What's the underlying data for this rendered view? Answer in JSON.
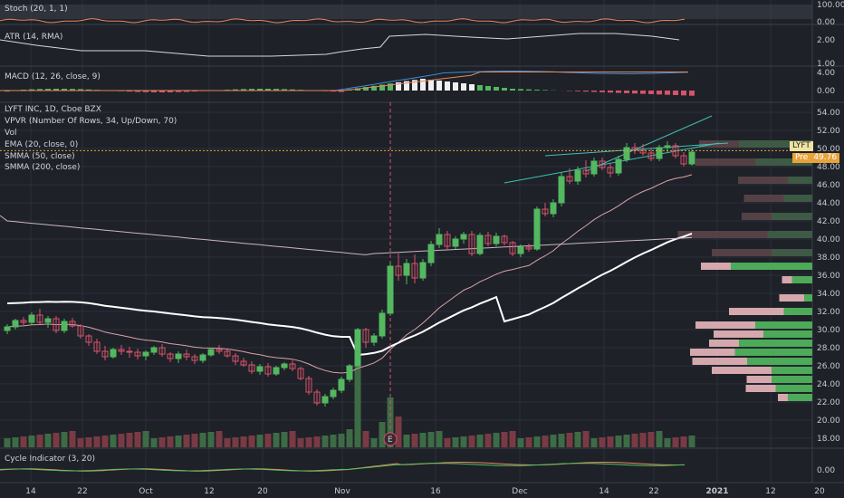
{
  "colors": {
    "background": "#1e2128",
    "grid": "#2c303a",
    "up": "#53b860",
    "down": "#d8536a",
    "ema": "#d9a2a8",
    "smma50": "#ffffff",
    "smma200": "#c9b6c6",
    "channel": "#3fc1b0",
    "stoch": "#e8875a",
    "atr": "#d8d8d8",
    "macd": "#3b8bd8",
    "macd_signal": "#e8875a",
    "price_line": "#e8a23a",
    "cycle_a": "#e8875a",
    "cycle_b": "#55c060",
    "vprofile_up": "#4caa58",
    "vprofile_down": "#d4a8ad",
    "vprofile_up_faded": "#3e5a44",
    "vprofile_down_faded": "#5a4548"
  },
  "panes": {
    "stoch": {
      "label": "Stoch (20, 1, 1)",
      "ticks": [
        "100.00",
        "0.00"
      ]
    },
    "atr": {
      "label": "ATR (14, RMA)",
      "ticks": [
        "2.00",
        "1.00"
      ]
    },
    "macd": {
      "label": "MACD (12, 26, close, 9)",
      "ticks": [
        "4.00",
        "0.00"
      ]
    },
    "main": {
      "labels": [
        "LYFT INC, 1D, Cboe BZX",
        "VPVR (Number Of Rows, 34, Up/Down, 70)",
        "Vol",
        "EMA (20, close, 0)",
        "SMMA (50, close)",
        "SMMA (200, close)"
      ],
      "ticker_tag": "LYFT",
      "price_tag_prefix": "Pre",
      "price_tag_value": "49.76",
      "event_marker": "E"
    },
    "cycle": {
      "label": "Cycle Indicator (3, 20)",
      "ticks": [
        "0.00"
      ]
    }
  },
  "chart_data": [
    {
      "type": "candlestick",
      "title": "LYFT INC, 1D, Cboe BZX",
      "y_ticks": [
        "54.00",
        "52.00",
        "50.00",
        "48.00",
        "46.00",
        "44.00",
        "42.00",
        "40.00",
        "38.00",
        "36.00",
        "34.00",
        "32.00",
        "30.00",
        "28.00",
        "26.00",
        "24.00",
        "22.00",
        "20.00",
        "18.00"
      ],
      "ylim": [
        17,
        55
      ],
      "x_ticks": [
        "14",
        "22",
        "Oct",
        "12",
        "20",
        "Nov",
        "16",
        "Dec",
        "14",
        "22",
        "2021",
        "12",
        "20"
      ],
      "current_price": 49.76,
      "candles": [
        [
          29.9,
          30.6,
          29.5,
          30.3
        ],
        [
          30.3,
          31.2,
          30.0,
          31.0
        ],
        [
          31.0,
          31.4,
          30.5,
          30.8
        ],
        [
          30.8,
          31.9,
          30.5,
          31.6
        ],
        [
          31.6,
          32.3,
          30.6,
          30.8
        ],
        [
          30.8,
          31.5,
          30.2,
          31.2
        ],
        [
          31.2,
          31.5,
          29.6,
          29.9
        ],
        [
          29.9,
          31.2,
          29.6,
          30.9
        ],
        [
          30.9,
          31.3,
          30.2,
          30.4
        ],
        [
          30.4,
          30.6,
          29.0,
          29.3
        ],
        [
          29.3,
          29.5,
          28.2,
          28.6
        ],
        [
          28.6,
          29.0,
          27.3,
          27.6
        ],
        [
          27.6,
          28.2,
          26.6,
          27.0
        ],
        [
          27.0,
          28.0,
          26.8,
          27.8
        ],
        [
          27.8,
          28.3,
          27.2,
          27.6
        ],
        [
          27.6,
          28.1,
          26.9,
          27.5
        ],
        [
          27.5,
          27.9,
          26.7,
          27.1
        ],
        [
          27.1,
          27.7,
          26.6,
          27.5
        ],
        [
          27.5,
          28.2,
          27.2,
          28.0
        ],
        [
          28.0,
          28.4,
          27.0,
          27.3
        ],
        [
          27.3,
          27.5,
          26.4,
          26.8
        ],
        [
          26.8,
          27.6,
          26.3,
          27.3
        ],
        [
          27.3,
          27.8,
          26.6,
          27.0
        ],
        [
          27.0,
          27.3,
          26.2,
          26.6
        ],
        [
          26.6,
          27.4,
          26.3,
          27.2
        ],
        [
          27.2,
          28.0,
          27.0,
          27.8
        ],
        [
          27.8,
          28.3,
          27.3,
          27.6
        ],
        [
          27.6,
          27.8,
          26.9,
          27.1
        ],
        [
          27.1,
          27.4,
          26.1,
          26.5
        ],
        [
          26.5,
          26.9,
          25.9,
          26.1
        ],
        [
          26.1,
          26.5,
          25.1,
          25.4
        ],
        [
          25.4,
          26.2,
          25.0,
          25.9
        ],
        [
          25.9,
          26.3,
          24.8,
          25.1
        ],
        [
          25.1,
          26.0,
          24.9,
          25.8
        ],
        [
          25.8,
          26.4,
          25.5,
          26.2
        ],
        [
          26.2,
          26.6,
          25.4,
          25.7
        ],
        [
          25.7,
          25.9,
          24.4,
          24.6
        ],
        [
          24.6,
          24.9,
          22.8,
          23.1
        ],
        [
          23.1,
          23.4,
          21.6,
          21.9
        ],
        [
          21.9,
          22.9,
          21.5,
          22.6
        ],
        [
          22.6,
          23.6,
          22.3,
          23.3
        ],
        [
          23.3,
          24.8,
          23.0,
          24.5
        ],
        [
          24.5,
          26.2,
          24.2,
          26.0
        ],
        [
          26.0,
          30.2,
          25.9,
          30.0
        ],
        [
          30.0,
          30.2,
          28.0,
          28.6
        ],
        [
          28.6,
          29.6,
          28.2,
          29.3
        ],
        [
          29.3,
          32.2,
          29.0,
          31.8
        ],
        [
          31.8,
          37.4,
          31.5,
          37.0
        ],
        [
          37.0,
          38.4,
          35.4,
          36.0
        ],
        [
          36.0,
          37.8,
          35.0,
          37.3
        ],
        [
          37.3,
          38.3,
          35.1,
          35.7
        ],
        [
          35.7,
          37.8,
          35.4,
          37.4
        ],
        [
          37.4,
          39.8,
          37.0,
          39.4
        ],
        [
          39.4,
          41.2,
          39.0,
          40.5
        ],
        [
          40.5,
          40.9,
          38.8,
          39.2
        ],
        [
          39.2,
          40.3,
          38.9,
          40.0
        ],
        [
          40.0,
          40.8,
          39.5,
          40.5
        ],
        [
          40.5,
          40.9,
          38.1,
          38.4
        ],
        [
          38.4,
          40.7,
          38.2,
          40.4
        ],
        [
          40.4,
          40.8,
          39.2,
          39.5
        ],
        [
          39.5,
          40.7,
          39.2,
          40.3
        ],
        [
          40.3,
          40.5,
          39.3,
          39.6
        ],
        [
          39.6,
          39.8,
          38.1,
          38.4
        ],
        [
          38.4,
          39.4,
          38.0,
          39.1
        ],
        [
          39.1,
          39.5,
          38.6,
          38.9
        ],
        [
          38.9,
          43.6,
          38.7,
          43.3
        ],
        [
          43.3,
          44.0,
          42.5,
          42.8
        ],
        [
          42.8,
          44.4,
          42.4,
          44.0
        ],
        [
          44.0,
          47.3,
          43.6,
          46.9
        ],
        [
          46.9,
          47.8,
          46.1,
          46.4
        ],
        [
          46.4,
          48.0,
          46.0,
          47.6
        ],
        [
          47.6,
          48.7,
          46.8,
          47.2
        ],
        [
          47.2,
          49.0,
          46.9,
          48.6
        ],
        [
          48.6,
          49.0,
          47.6,
          47.9
        ],
        [
          47.9,
          48.3,
          46.8,
          47.3
        ],
        [
          47.3,
          49.2,
          47.0,
          48.8
        ],
        [
          48.8,
          50.6,
          48.5,
          50.1
        ],
        [
          50.1,
          50.6,
          49.4,
          49.8
        ],
        [
          49.8,
          50.5,
          49.2,
          49.5
        ],
        [
          49.5,
          50.1,
          48.6,
          48.9
        ],
        [
          48.9,
          50.4,
          48.6,
          50.1
        ],
        [
          50.1,
          50.8,
          49.6,
          50.3
        ],
        [
          50.3,
          50.6,
          48.9,
          49.2
        ],
        [
          49.2,
          49.6,
          48.0,
          48.3
        ],
        [
          48.3,
          49.9,
          48.1,
          49.6
        ]
      ],
      "volume_colors": "up/down",
      "event_index": 47
    }
  ]
}
